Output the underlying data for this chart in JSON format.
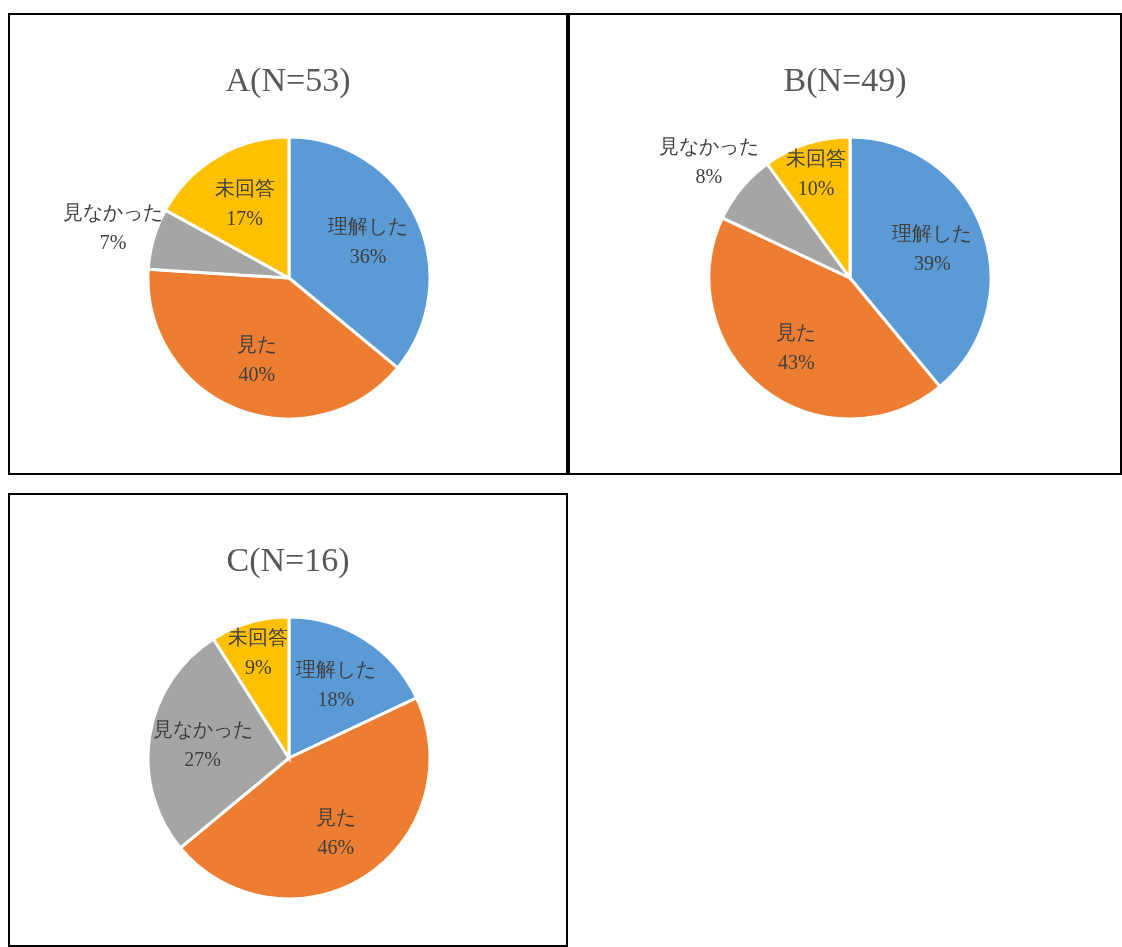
{
  "chart_data": [
    {
      "type": "pie",
      "title": "A(N=53)",
      "categories": [
        "理解した",
        "見た",
        "見なかった",
        "未回答"
      ],
      "values": [
        36,
        40,
        7,
        17
      ],
      "value_labels": [
        "36%",
        "40%",
        "7%",
        "17%"
      ],
      "colors": [
        "#5b9bd5",
        "#ed7d31",
        "#a5a5a5",
        "#ffc000"
      ]
    },
    {
      "type": "pie",
      "title": "B(N=49)",
      "categories": [
        "理解した",
        "見た",
        "見なかった",
        "未回答"
      ],
      "values": [
        39,
        43,
        8,
        10
      ],
      "value_labels": [
        "39%",
        "43%",
        "8%",
        "10%"
      ],
      "colors": [
        "#5b9bd5",
        "#ed7d31",
        "#a5a5a5",
        "#ffc000"
      ]
    },
    {
      "type": "pie",
      "title": "C(N=16)",
      "categories": [
        "理解した",
        "見た",
        "見なかった",
        "未回答"
      ],
      "values": [
        18,
        46,
        27,
        9
      ],
      "value_labels": [
        "18%",
        "46%",
        "27%",
        "9%"
      ],
      "colors": [
        "#5b9bd5",
        "#ed7d31",
        "#a5a5a5",
        "#ffc000"
      ]
    }
  ]
}
